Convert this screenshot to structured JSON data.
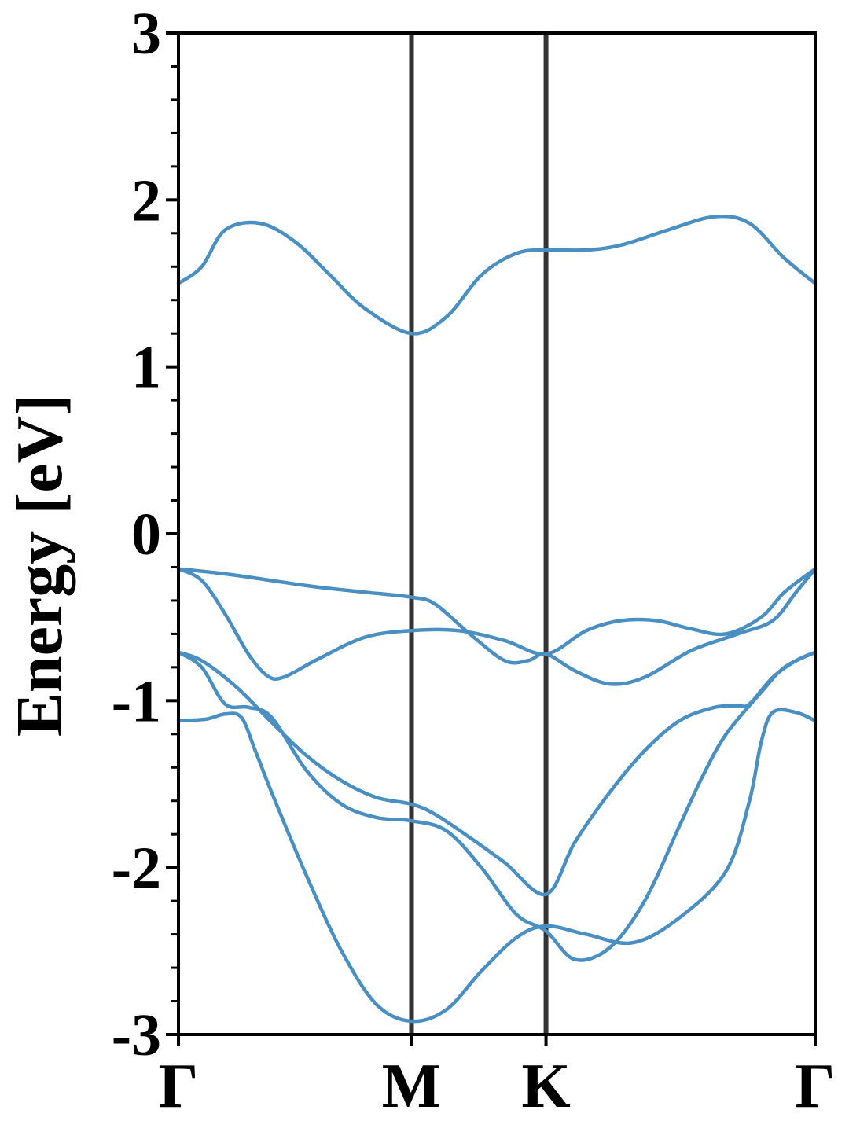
{
  "chart_data": {
    "type": "line",
    "title": "",
    "xlabel": "",
    "ylabel": "Energy [eV]",
    "ylim": [
      -3,
      3
    ],
    "y_ticks": [
      "3",
      "2",
      "1",
      "0",
      "-1",
      "-2",
      "-3"
    ],
    "y_minor_step": 0.2,
    "x_ticks": [
      "Γ",
      "M",
      "K",
      "Γ"
    ],
    "x_tick_positions": [
      0,
      1,
      1.577,
      2.732
    ],
    "xlim": [
      0,
      2.732
    ],
    "grid": false,
    "legend": "none",
    "colors": {
      "bands": "#4a8fc2",
      "high_symmetry_lines": "#333333",
      "axes": "#000000"
    },
    "series": [
      {
        "x": [
          0,
          0.1,
          0.2,
          0.35,
          0.5,
          0.65,
          0.8,
          1.0,
          1.15,
          1.3,
          1.45,
          1.577,
          1.75,
          1.9,
          2.1,
          2.3,
          2.45,
          2.6,
          2.732
        ],
        "values": [
          1.5,
          1.6,
          1.82,
          1.86,
          1.75,
          1.55,
          1.35,
          1.2,
          1.3,
          1.55,
          1.68,
          1.7,
          1.7,
          1.73,
          1.82,
          1.9,
          1.86,
          1.65,
          1.5
        ]
      },
      {
        "x": [
          0,
          0.2,
          0.4,
          0.6,
          0.8,
          1.0,
          1.1,
          1.25,
          1.4,
          1.5,
          1.577,
          1.7,
          1.85,
          2.0,
          2.2,
          2.4,
          2.55,
          2.65,
          2.732
        ],
        "values": [
          -0.21,
          -0.24,
          -0.28,
          -0.32,
          -0.35,
          -0.38,
          -0.42,
          -0.6,
          -0.76,
          -0.76,
          -0.72,
          -0.82,
          -0.9,
          -0.86,
          -0.7,
          -0.6,
          -0.52,
          -0.35,
          -0.21
        ]
      },
      {
        "x": [
          0,
          0.1,
          0.2,
          0.3,
          0.38,
          0.45,
          0.6,
          0.8,
          1.0,
          1.2,
          1.4,
          1.577,
          1.75,
          1.9,
          2.05,
          2.2,
          2.35,
          2.5,
          2.6,
          2.732
        ],
        "values": [
          -0.21,
          -0.28,
          -0.48,
          -0.72,
          -0.85,
          -0.86,
          -0.75,
          -0.62,
          -0.58,
          -0.58,
          -0.64,
          -0.72,
          -0.58,
          -0.52,
          -0.52,
          -0.57,
          -0.6,
          -0.5,
          -0.35,
          -0.21
        ]
      },
      {
        "x": [
          0,
          0.12,
          0.2,
          0.27,
          0.33,
          0.4,
          0.55,
          0.7,
          0.85,
          1.0,
          1.15,
          1.3,
          1.45,
          1.577,
          1.75,
          1.95,
          2.15,
          2.35,
          2.45,
          2.5,
          2.55,
          2.65,
          2.732
        ],
        "values": [
          -1.12,
          -1.11,
          -1.08,
          -1.1,
          -1.3,
          -1.55,
          -2.05,
          -2.5,
          -2.82,
          -2.92,
          -2.85,
          -2.62,
          -2.42,
          -2.35,
          -2.4,
          -2.45,
          -2.3,
          -2.02,
          -1.6,
          -1.25,
          -1.07,
          -1.07,
          -1.12
        ]
      },
      {
        "x": [
          0,
          0.1,
          0.2,
          0.3,
          0.4,
          0.55,
          0.7,
          0.85,
          1.0,
          1.15,
          1.3,
          1.45,
          1.577,
          1.7,
          1.85,
          2.0,
          2.15,
          2.25,
          2.35,
          2.5,
          2.6,
          2.732
        ],
        "values": [
          -0.71,
          -0.8,
          -1.02,
          -1.04,
          -1.1,
          -1.42,
          -1.62,
          -1.7,
          -1.72,
          -1.78,
          -2.0,
          -2.28,
          -2.38,
          -2.55,
          -2.48,
          -2.2,
          -1.75,
          -1.45,
          -1.2,
          -0.95,
          -0.8,
          -0.71
        ]
      },
      {
        "x": [
          0,
          0.1,
          0.25,
          0.4,
          0.55,
          0.7,
          0.85,
          1.0,
          1.1,
          1.25,
          1.4,
          1.577,
          1.7,
          1.85,
          2.0,
          2.15,
          2.3,
          2.4,
          2.45,
          2.55,
          2.65,
          2.732
        ],
        "values": [
          -0.71,
          -0.76,
          -0.92,
          -1.13,
          -1.33,
          -1.48,
          -1.58,
          -1.62,
          -1.68,
          -1.82,
          -1.97,
          -2.16,
          -1.85,
          -1.55,
          -1.3,
          -1.12,
          -1.04,
          -1.03,
          -1.02,
          -0.86,
          -0.76,
          -0.71
        ]
      }
    ]
  }
}
